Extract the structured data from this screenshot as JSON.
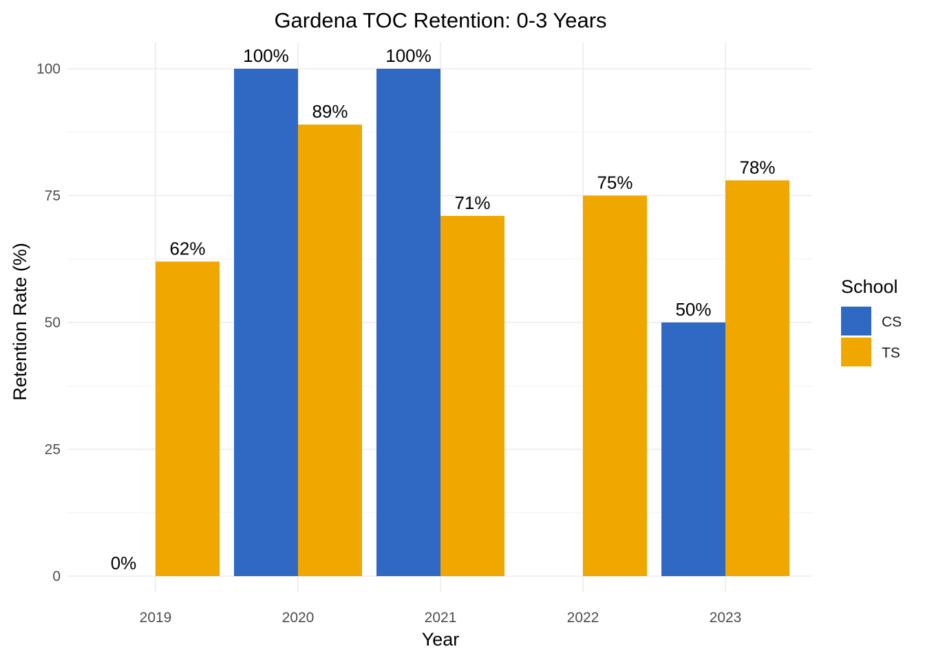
{
  "chart_data": {
    "type": "bar",
    "title": "Gardena TOC Retention: 0-3 Years",
    "xlabel": "Year",
    "ylabel": "Retention Rate (%)",
    "categories": [
      "2019",
      "2020",
      "2021",
      "2022",
      "2023"
    ],
    "series": [
      {
        "name": "CS",
        "color": "#2F69C4",
        "values": [
          0,
          100,
          100,
          null,
          50
        ],
        "labels": [
          "0%",
          "100%",
          "100%",
          null,
          "50%"
        ]
      },
      {
        "name": "TS",
        "color": "#F0A800",
        "values": [
          62,
          89,
          71,
          75,
          78
        ],
        "labels": [
          "62%",
          "89%",
          "71%",
          "75%",
          "78%"
        ]
      }
    ],
    "ylim": [
      0,
      100
    ],
    "yticks": [
      0,
      25,
      50,
      75,
      100
    ],
    "grid": true,
    "legend": {
      "title": "School",
      "position": "right"
    }
  }
}
